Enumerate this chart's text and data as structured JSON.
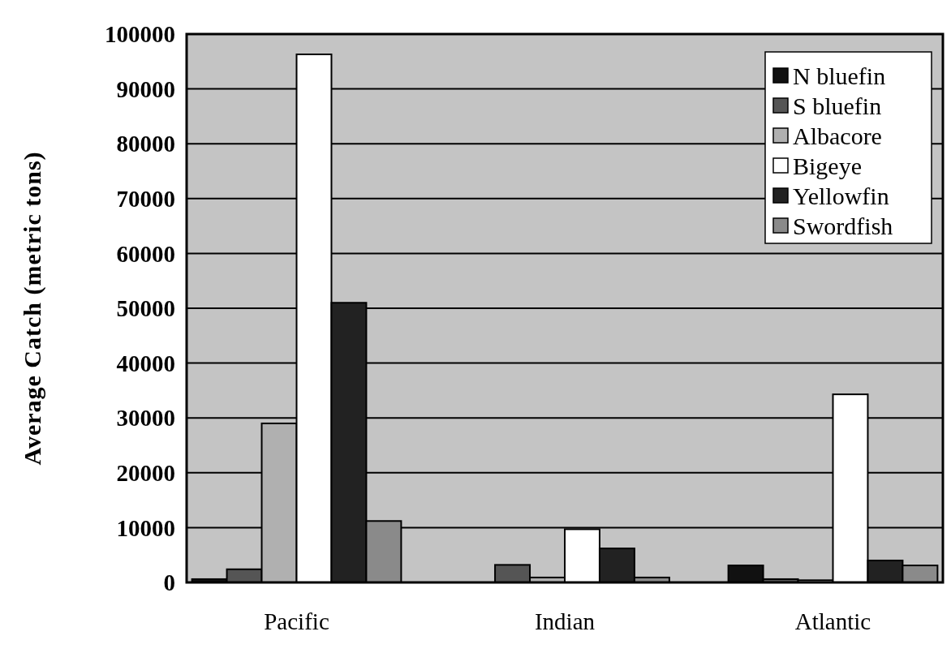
{
  "chart_data": {
    "type": "bar",
    "ylabel": "Average Catch (metric tons)",
    "categories": [
      "Pacific",
      "Indian",
      "Atlantic"
    ],
    "series": [
      {
        "name": "N bluefin",
        "color": "#111111",
        "values": [
          600,
          0,
          3100
        ]
      },
      {
        "name": "S bluefin",
        "color": "#555555",
        "values": [
          2400,
          3200,
          600
        ]
      },
      {
        "name": "Albacore",
        "color": "#b0b0b0",
        "values": [
          29000,
          900,
          400
        ]
      },
      {
        "name": "Bigeye",
        "color": "#ffffff",
        "values": [
          96300,
          9700,
          34300
        ]
      },
      {
        "name": "Yellowfin",
        "color": "#222222",
        "values": [
          51000,
          6200,
          4000
        ]
      },
      {
        "name": "Swordfish",
        "color": "#8a8a8a",
        "values": [
          11200,
          900,
          3100
        ]
      }
    ],
    "ylim": [
      0,
      100000
    ],
    "yticks": [
      0,
      10000,
      20000,
      30000,
      40000,
      50000,
      60000,
      70000,
      80000,
      90000,
      100000
    ],
    "grid": "y",
    "legend": "top right"
  }
}
